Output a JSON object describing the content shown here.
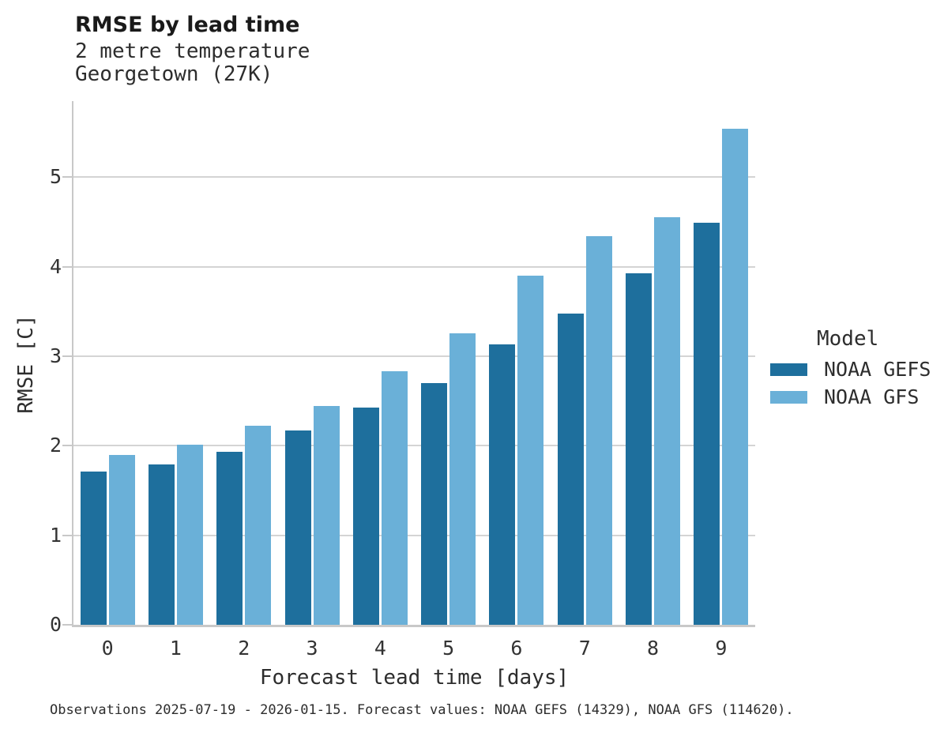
{
  "chart_data": {
    "type": "bar",
    "title": "RMSE by lead time",
    "subtitle_lines": [
      "2 metre temperature",
      "Georgetown (27K)"
    ],
    "categories": [
      "0",
      "1",
      "2",
      "3",
      "4",
      "5",
      "6",
      "7",
      "8",
      "9"
    ],
    "series": [
      {
        "name": "NOAA GEFS",
        "color": "#1e6f9d",
        "values": [
          1.71,
          1.79,
          1.93,
          2.17,
          2.43,
          2.7,
          3.13,
          3.48,
          3.93,
          4.49
        ]
      },
      {
        "name": "NOAA GFS",
        "color": "#6ab0d8",
        "values": [
          1.9,
          2.01,
          2.22,
          2.44,
          2.83,
          3.26,
          3.9,
          4.34,
          4.55,
          5.54
        ]
      }
    ],
    "xlabel": "Forecast lead time [days]",
    "ylabel": "RMSE [C]",
    "ylim": [
      0,
      5.85
    ],
    "yticks": [
      0,
      1,
      2,
      3,
      4,
      5
    ],
    "grid": true,
    "legend_title": "Model",
    "legend_position": "right",
    "caption": "Observations 2025-07-19 - 2026-01-15. Forecast values: NOAA GEFS (14329), NOAA GFS (114620).",
    "colors": {
      "gridline": "#d4d4d4",
      "spine": "#c8c8c8",
      "title_text": "#1a1a1a",
      "body_text": "#2d2d2d",
      "tick_text": "#333333"
    }
  }
}
